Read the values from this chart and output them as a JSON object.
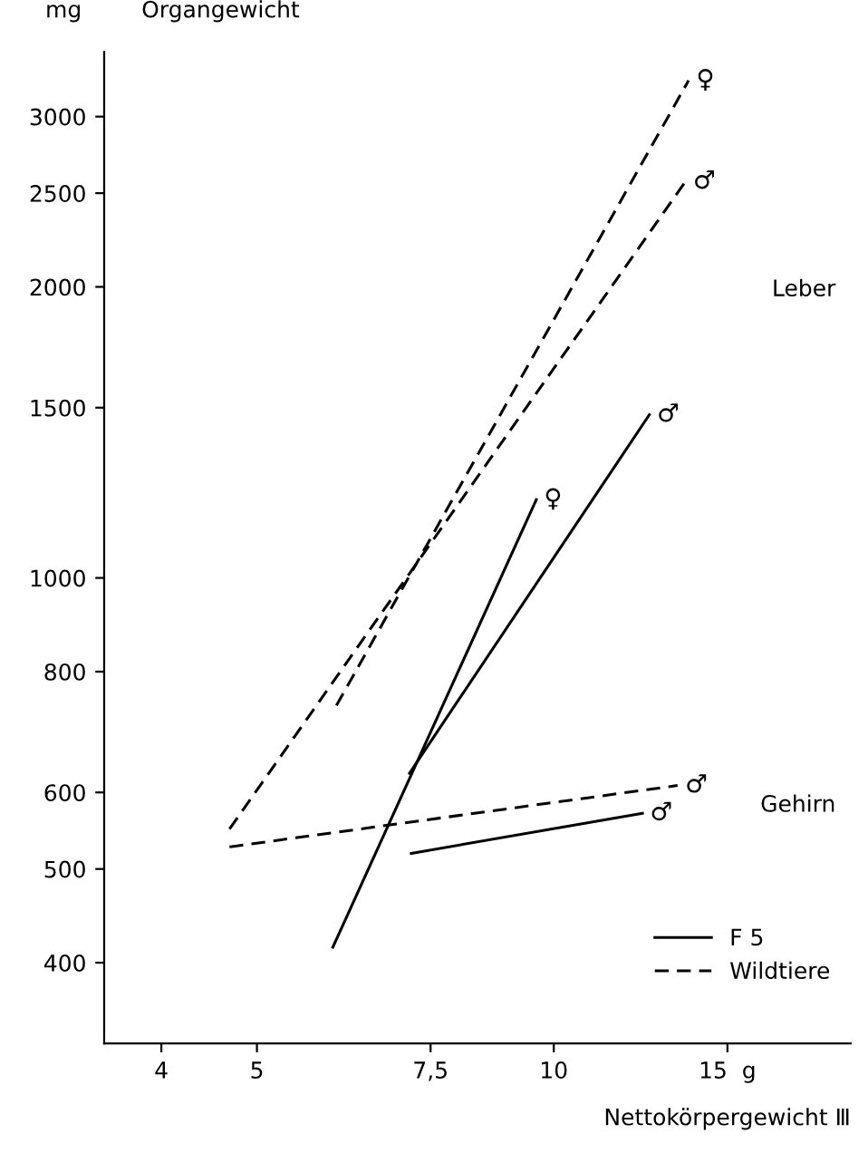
{
  "chart_data": {
    "type": "line",
    "title": "Organgewicht",
    "ylabel": "mg",
    "xlabel": "Nettokörpergewicht Ⅲ",
    "log": "xy",
    "xlim": [
      3.5,
      20
    ],
    "ylim": [
      330,
      3500
    ],
    "xticks": [
      4,
      5,
      {
        "value": 7.5,
        "label": "7,5"
      },
      10,
      {
        "value": 15,
        "label": "15  g"
      }
    ],
    "yticks": [
      400,
      500,
      600,
      800,
      1000,
      1500,
      2000,
      2500,
      3000
    ],
    "legend": "bottom right",
    "grid": false,
    "marker": "none",
    "series": [
      {
        "name": "F 5",
        "color": "#000000",
        "line_style": "solid",
        "x": [
          5.97,
          9.6
        ],
        "values": [
          415,
          1205
        ]
      },
      {
        "color": "#000000",
        "line_style": "solid",
        "x": [
          7.14,
          12.5
        ],
        "values": [
          628,
          1475
        ]
      },
      {
        "color": "#000000",
        "line_style": "solid",
        "x": [
          7.17,
          12.3
        ],
        "values": [
          519,
          571
        ]
      },
      {
        "name": "Wildtiere",
        "color": "#000000",
        "line_style": "dashed",
        "x": [
          6.02,
          13.7
        ],
        "values": [
          738,
          3270
        ]
      },
      {
        "color": "#000000",
        "line_style": "dashed",
        "x": [
          4.69,
          13.6
        ],
        "values": [
          550,
          2570
        ]
      },
      {
        "color": "#000000",
        "line_style": "dashed",
        "x": [
          4.69,
          13.35
        ],
        "values": [
          527,
          610
        ]
      }
    ],
    "annotations": [
      {
        "text": "♀",
        "x": 9.6,
        "y": 1205
      },
      {
        "text": "♂",
        "x": 12.5,
        "y": 1475
      },
      {
        "text": "♂",
        "x": 12.3,
        "y": 571
      },
      {
        "text": "♀",
        "x": 13.7,
        "y": 3270
      },
      {
        "text": "♂",
        "x": 13.6,
        "y": 2570
      },
      {
        "text": "♂",
        "x": 13.35,
        "y": 610
      },
      "Leber",
      "Gehirn"
    ]
  }
}
